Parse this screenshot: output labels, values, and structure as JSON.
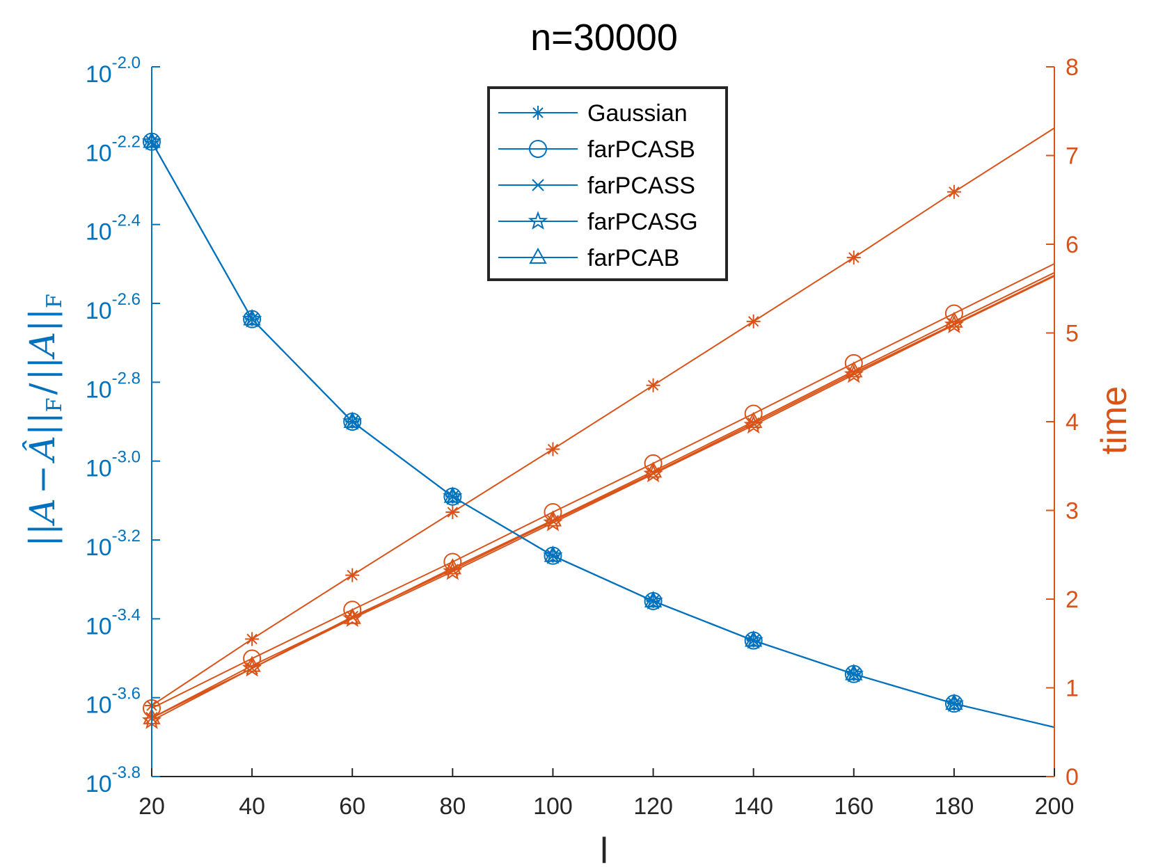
{
  "chart_data": {
    "type": "line",
    "title": "n=30000",
    "xlabel": "l",
    "ylabel_left": "||A − Â||F / ||A||F",
    "ylabel_right": "time",
    "x": [
      20,
      40,
      60,
      80,
      100,
      120,
      140,
      160,
      180,
      200
    ],
    "xlim": [
      20,
      200
    ],
    "xticks": [
      "20",
      "40",
      "60",
      "80",
      "100",
      "120",
      "140",
      "160",
      "180",
      "200"
    ],
    "ylim_left_log10": [
      -3.8,
      -2.0
    ],
    "yticks_left_exponents": [
      "-2.0",
      "-2.2",
      "-2.4",
      "-2.6",
      "-2.8",
      "-3.0",
      "-3.2",
      "-3.4",
      "-3.6",
      "-3.8"
    ],
    "ytick_left_base": "10",
    "ylim_right": [
      0,
      8
    ],
    "yticks_right": [
      "0",
      "1",
      "2",
      "3",
      "4",
      "5",
      "6",
      "7",
      "8"
    ],
    "colors": {
      "left": "#0072bd",
      "right": "#d95319"
    },
    "legend_location": "top-center",
    "series": [
      {
        "name": "Gaussian",
        "marker": "asterisk",
        "error_log10": [
          -2.19,
          -2.64,
          -2.9,
          -3.09,
          -3.24,
          -3.355,
          -3.455,
          -3.54,
          -3.615,
          -3.675
        ],
        "time": [
          0.8,
          1.55,
          2.27,
          2.98,
          3.69,
          4.41,
          5.13,
          5.85,
          6.59,
          7.31
        ]
      },
      {
        "name": "farPCASB",
        "marker": "circle",
        "error_log10": [
          -2.19,
          -2.64,
          -2.9,
          -3.09,
          -3.24,
          -3.355,
          -3.455,
          -3.54,
          -3.615,
          -3.675
        ],
        "time": [
          0.77,
          1.33,
          1.88,
          2.42,
          2.98,
          3.53,
          4.09,
          4.66,
          5.22,
          5.78
        ]
      },
      {
        "name": "farPCASS",
        "marker": "x",
        "error_log10": [
          -2.19,
          -2.64,
          -2.9,
          -3.09,
          -3.24,
          -3.355,
          -3.455,
          -3.54,
          -3.615,
          -3.675
        ],
        "time": [
          0.66,
          1.22,
          1.8,
          2.33,
          2.88,
          3.42,
          3.98,
          4.55,
          5.1,
          5.65
        ]
      },
      {
        "name": "farPCASG",
        "marker": "pentagram",
        "error_log10": [
          -2.19,
          -2.64,
          -2.9,
          -3.09,
          -3.24,
          -3.355,
          -3.455,
          -3.54,
          -3.615,
          -3.675
        ],
        "time": [
          0.63,
          1.22,
          1.78,
          2.31,
          2.86,
          3.41,
          3.96,
          4.53,
          5.09,
          5.64
        ]
      },
      {
        "name": "farPCAB",
        "marker": "triangle",
        "error_log10": [
          -2.19,
          -2.64,
          -2.9,
          -3.09,
          -3.24,
          -3.355,
          -3.455,
          -3.54,
          -3.615,
          -3.675
        ],
        "time": [
          0.66,
          1.25,
          1.79,
          2.35,
          2.89,
          3.44,
          4.0,
          4.57,
          5.13,
          5.68
        ]
      }
    ]
  }
}
